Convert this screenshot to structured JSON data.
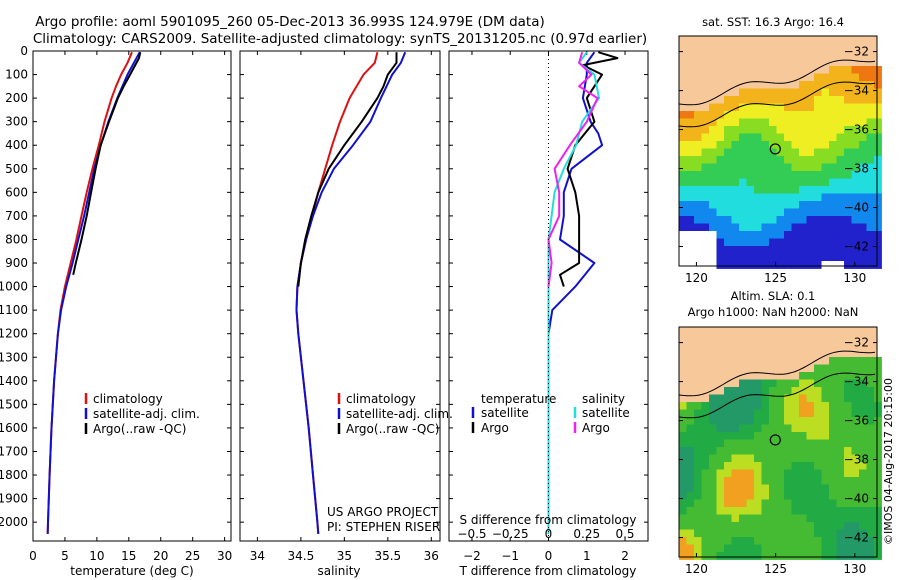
{
  "header": {
    "line1": "Argo profile: aoml 5901095_260 05-Dec-2013 36.993S 124.979E (DM data)",
    "line2": "Climatology: CARS2009. Satellite-adjusted climatology: synTS_20131205.nc (0.97d earlier)"
  },
  "colors": {
    "climatology": "#dd1111",
    "satellite": "#1111cc",
    "argo": "#000000",
    "salinity_sat": "#22dddd",
    "salinity_argo": "#ee22ee",
    "land": "#f7c89a"
  },
  "depth_ticks": [
    "0",
    "100",
    "200",
    "300",
    "400",
    "500",
    "600",
    "700",
    "800",
    "900",
    "1000",
    "1100",
    "1200",
    "1300",
    "1400",
    "1500",
    "1600",
    "1700",
    "1800",
    "1900",
    "2000"
  ],
  "legend_profile": {
    "climatology": "climatology",
    "satellite": "satellite-adj. clim.",
    "argo": "Argo(..raw -QC)"
  },
  "legend_diff": {
    "temperature": "temperature",
    "salinity": "salinity",
    "t_sat": "satellite",
    "t_argo": "Argo",
    "s_sat": "satellite",
    "s_argo": "Argo"
  },
  "credits": {
    "project": "US ARGO PROJECT",
    "pi": "PI: STEPHEN RISER"
  },
  "maps": {
    "sst_title": "sat. SST: 16.3 Argo: 16.4",
    "sla_title1": "Altim. SLA: 0.1",
    "sla_title2": "Argo h1000: NaN h2000: NaN",
    "lat_ticks": [
      "-32",
      "-34",
      "-36",
      "-38",
      "-40",
      "-42"
    ],
    "lon_ticks": [
      "120",
      "125",
      "130"
    ],
    "stamp": "©IMOS 04-Aug-2017 20:15:00"
  },
  "chart_data": [
    {
      "type": "line",
      "xlabel": "temperature (deg C)",
      "ylabel": "",
      "xlim": [
        0,
        31
      ],
      "ylim": [
        2080,
        0
      ],
      "xticks": [
        "0",
        "5",
        "10",
        "15",
        "20",
        "25",
        "30"
      ],
      "series": [
        {
          "name": "climatology",
          "depth": [
            5,
            50,
            100,
            150,
            200,
            300,
            400,
            500,
            600,
            700,
            800,
            900,
            1000,
            1100,
            1200,
            1400,
            1600,
            1800,
            2000,
            2050
          ],
          "values": [
            15.5,
            14.8,
            13.8,
            13.0,
            12.3,
            11.2,
            10.3,
            9.3,
            8.4,
            7.6,
            6.8,
            5.9,
            5.0,
            4.3,
            3.9,
            3.3,
            2.9,
            2.6,
            2.35,
            2.3
          ]
        },
        {
          "name": "satellite-adj. clim.",
          "depth": [
            5,
            50,
            100,
            150,
            200,
            300,
            400,
            500,
            600,
            700,
            800,
            900,
            1000,
            1100,
            1200,
            1400,
            1600,
            1800,
            2000,
            2050
          ],
          "values": [
            16.7,
            15.8,
            14.8,
            14.0,
            13.2,
            11.8,
            10.6,
            9.6,
            8.8,
            8.0,
            7.1,
            6.2,
            5.2,
            4.4,
            3.9,
            3.3,
            2.9,
            2.6,
            2.35,
            2.3
          ]
        },
        {
          "name": "Argo(..raw -QC)",
          "depth": [
            5,
            30,
            60,
            100,
            150,
            200,
            300,
            400,
            500,
            600,
            700,
            800,
            900,
            950
          ],
          "values": [
            16.8,
            16.6,
            16.0,
            15.2,
            14.2,
            13.3,
            11.9,
            10.6,
            9.8,
            9.1,
            8.4,
            7.6,
            6.7,
            6.3
          ]
        }
      ]
    },
    {
      "type": "line",
      "xlabel": "salinity",
      "ylabel": "",
      "xlim": [
        33.8,
        36.1
      ],
      "ylim": [
        2080,
        0
      ],
      "xticks": [
        "34",
        "34.5",
        "35",
        "35.5",
        "36"
      ],
      "series": [
        {
          "name": "climatology",
          "depth": [
            5,
            50,
            100,
            200,
            300,
            400,
            500,
            600,
            700,
            800,
            900,
            1000,
            1100,
            1200,
            1400,
            1600,
            1800,
            2000,
            2050
          ],
          "values": [
            35.38,
            35.35,
            35.22,
            35.06,
            34.95,
            34.86,
            34.78,
            34.7,
            34.63,
            34.56,
            34.5,
            34.46,
            34.45,
            34.47,
            34.53,
            34.59,
            34.64,
            34.69,
            34.7
          ]
        },
        {
          "name": "satellite-adj. clim.",
          "depth": [
            5,
            50,
            100,
            200,
            300,
            400,
            500,
            600,
            700,
            800,
            900,
            1000,
            1100,
            1200,
            1400,
            1600,
            1800,
            2000,
            2050
          ],
          "values": [
            35.7,
            35.65,
            35.55,
            35.42,
            35.3,
            35.1,
            34.88,
            34.74,
            34.64,
            34.56,
            34.5,
            34.46,
            34.45,
            34.47,
            34.53,
            34.59,
            34.64,
            34.69,
            34.7
          ]
        },
        {
          "name": "Argo(..raw -QC)",
          "depth": [
            5,
            50,
            100,
            150,
            200,
            300,
            400,
            500,
            600,
            700,
            800,
            900,
            1000
          ],
          "values": [
            35.6,
            35.6,
            35.5,
            35.45,
            35.38,
            35.2,
            35.0,
            34.82,
            34.7,
            34.62,
            34.55,
            34.5,
            34.47
          ]
        }
      ]
    },
    {
      "type": "line",
      "xlabel": "T difference from climatology",
      "title": "S difference from climatology",
      "ylabel": "",
      "xlim": [
        -2.6,
        2.6
      ],
      "ylim": [
        2080,
        0
      ],
      "xticks": [
        "-2",
        "-1",
        "0",
        "1",
        "2"
      ],
      "top_ticks": [
        "-0.5",
        "-0.25",
        "0",
        "0.25",
        "0.5"
      ],
      "series": [
        {
          "name": "temperature satellite",
          "depth": [
            5,
            50,
            100,
            200,
            300,
            350,
            400,
            500,
            600,
            700,
            800,
            900,
            1000,
            1100,
            1200,
            1400,
            1600,
            1800,
            2000,
            2050
          ],
          "values": [
            1.2,
            1.0,
            1.0,
            0.9,
            1.1,
            1.3,
            1.4,
            0.6,
            0.4,
            0.4,
            0.3,
            1.2,
            0.7,
            0.1,
            0.0,
            0.0,
            0.0,
            0.0,
            0.0,
            0.0
          ]
        },
        {
          "name": "temperature Argo",
          "depth": [
            5,
            30,
            60,
            100,
            150,
            200,
            300,
            400,
            500,
            600,
            700,
            800,
            900,
            950,
            1000
          ],
          "values": [
            1.3,
            1.8,
            0.9,
            1.4,
            1.2,
            1.0,
            1.2,
            0.7,
            0.5,
            0.7,
            0.8,
            0.8,
            0.8,
            0.3,
            0.4
          ]
        },
        {
          "name": "salinity satellite",
          "depth": [
            5,
            50,
            100,
            200,
            300,
            400,
            500,
            600,
            700,
            800,
            900,
            1000,
            1100,
            1200,
            1400,
            1600,
            1800,
            2000,
            2050
          ],
          "values": [
            0.25,
            0.2,
            0.3,
            0.33,
            0.22,
            0.18,
            0.1,
            0.04,
            0.02,
            0.0,
            0.0,
            0.0,
            0.0,
            0.0,
            0.0,
            0.0,
            0.0,
            0.0,
            0.0
          ]
        },
        {
          "name": "salinity Argo",
          "depth": [
            5,
            50,
            100,
            150,
            200,
            300,
            400,
            500,
            600,
            700,
            800,
            900,
            1000
          ],
          "values": [
            0.22,
            0.2,
            0.28,
            0.2,
            0.32,
            0.25,
            0.14,
            0.04,
            0.07,
            0.07,
            0.0,
            0.02,
            0.0
          ]
        }
      ]
    }
  ]
}
